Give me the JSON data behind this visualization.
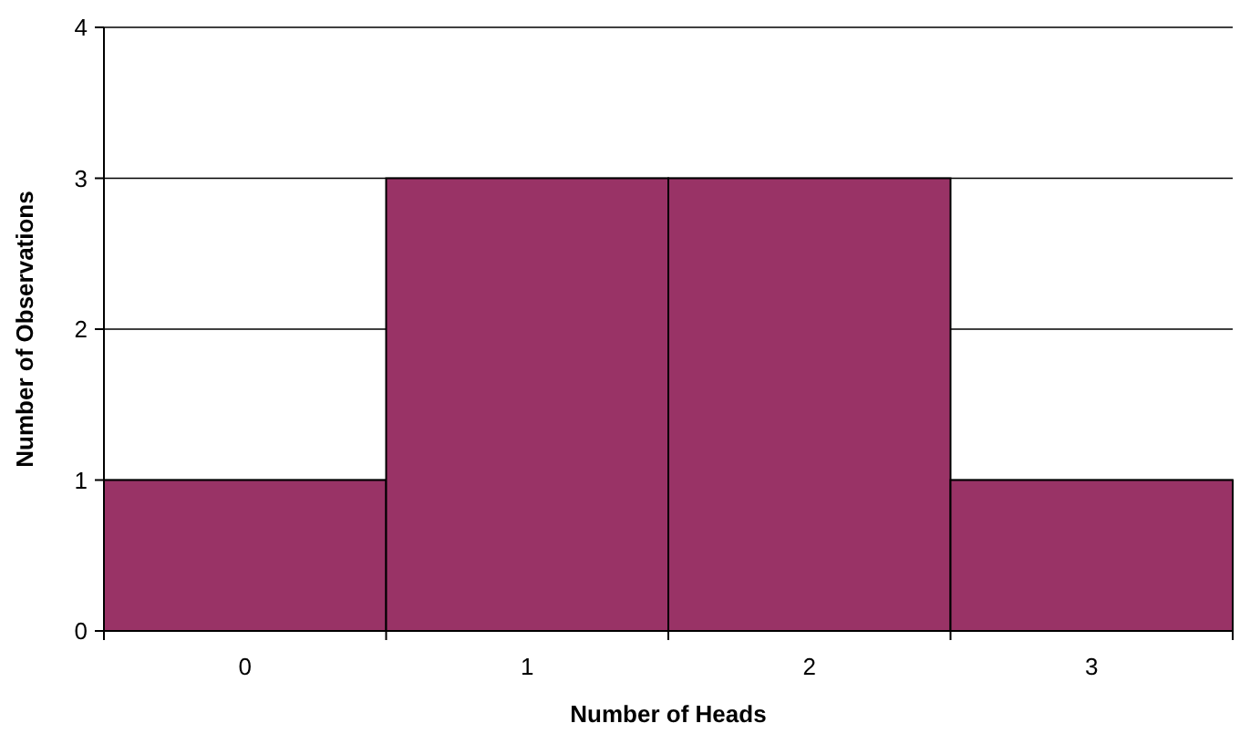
{
  "chart_data": {
    "type": "bar",
    "xlabel": "Number of Heads",
    "ylabel": "Number of Observations",
    "categories": [
      "0",
      "1",
      "2",
      "3"
    ],
    "values": [
      1,
      3,
      3,
      1
    ],
    "color": "#993366",
    "ylim": [
      0,
      4
    ],
    "yticks": [
      0,
      1,
      2,
      3,
      4
    ],
    "grid": "y"
  }
}
